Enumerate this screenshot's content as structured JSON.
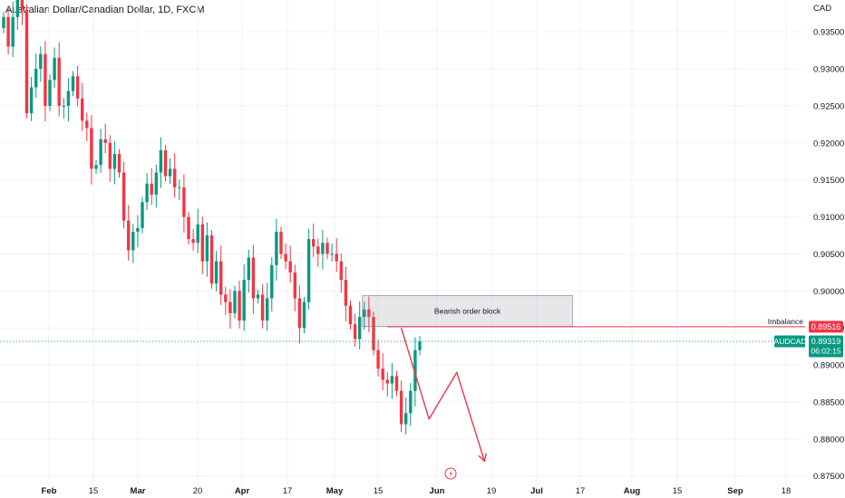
{
  "header": {
    "title": "Australian Dollar/Canadian Dollar, 1D, FXCM"
  },
  "chart_data": {
    "type": "candlestick",
    "currency": "CAD",
    "y_ticks": [
      "0.93500",
      "0.93000",
      "0.92500",
      "0.92000",
      "0.91500",
      "0.91000",
      "0.90500",
      "0.90000",
      "0.89500",
      "0.89000",
      "0.88500",
      "0.88000",
      "0.87500"
    ],
    "ylim": [
      0.8735,
      0.9393
    ],
    "x_ticks": [
      {
        "label": "Feb",
        "bold": true
      },
      {
        "label": "15",
        "bold": false
      },
      {
        "label": "Mar",
        "bold": true
      },
      {
        "label": "20",
        "bold": false
      },
      {
        "label": "Apr",
        "bold": true
      },
      {
        "label": "17",
        "bold": false
      },
      {
        "label": "May",
        "bold": true
      },
      {
        "label": "15",
        "bold": false
      },
      {
        "label": "Jun",
        "bold": true
      },
      {
        "label": "19",
        "bold": false
      },
      {
        "label": "Jul",
        "bold": true
      },
      {
        "label": "17",
        "bold": false
      },
      {
        "label": "Aug",
        "bold": true
      },
      {
        "label": "15",
        "bold": false
      },
      {
        "label": "Sep",
        "bold": true
      },
      {
        "label": "18",
        "bold": false
      }
    ],
    "colors": {
      "up": "#089981",
      "down": "#f23645",
      "grid": "#f0f3fa",
      "annotation": "#f23645"
    },
    "closes": [
      0.937,
      0.933,
      0.937,
      0.9395,
      0.938,
      0.924,
      0.9275,
      0.93,
      0.932,
      0.925,
      0.9285,
      0.9315,
      0.925,
      0.925,
      0.927,
      0.929,
      0.926,
      0.923,
      0.922,
      0.9165,
      0.917,
      0.9205,
      0.92,
      0.9165,
      0.9185,
      0.916,
      0.9095,
      0.9055,
      0.908,
      0.9085,
      0.912,
      0.9145,
      0.913,
      0.916,
      0.919,
      0.9155,
      0.9165,
      0.914,
      0.914,
      0.91,
      0.907,
      0.9065,
      0.909,
      0.904,
      0.9075,
      0.901,
      0.904,
      0.8995,
      0.8985,
      0.897,
      0.9,
      0.896,
      0.9015,
      0.9045,
      0.899,
      0.8995,
      0.896,
      0.899,
      0.9035,
      0.908,
      0.905,
      0.904,
      0.9025,
      0.899,
      0.895,
      0.8985,
      0.907,
      0.906,
      0.905,
      0.9065,
      0.905,
      0.905,
      0.904,
      0.9015,
      0.898,
      0.8955,
      0.8935,
      0.8965,
      0.8975,
      0.8965,
      0.892,
      0.8895,
      0.888,
      0.8875,
      0.8885,
      0.8865,
      0.882,
      0.8835,
      0.8865,
      0.892,
      0.8932
    ],
    "price_line": {
      "value": 0.89319,
      "label": "0.89319",
      "symbol": "AUDCAD",
      "countdown": "06:02:15",
      "color": "#089981"
    },
    "imbalance": {
      "label": "Imbalance",
      "price": 0.89516,
      "price_label": "0.89516",
      "from_bar": 83
    },
    "order_block": {
      "label": "Bearish order block",
      "from_bar": 78,
      "to_bar": 123,
      "top": 0.8994,
      "bottom": 0.8952
    },
    "projection": [
      {
        "bar": 86,
        "price": 0.895
      },
      {
        "bar": 92,
        "price": 0.8827
      },
      {
        "bar": 98,
        "price": 0.889
      },
      {
        "bar": 104,
        "price": 0.877
      }
    ]
  }
}
